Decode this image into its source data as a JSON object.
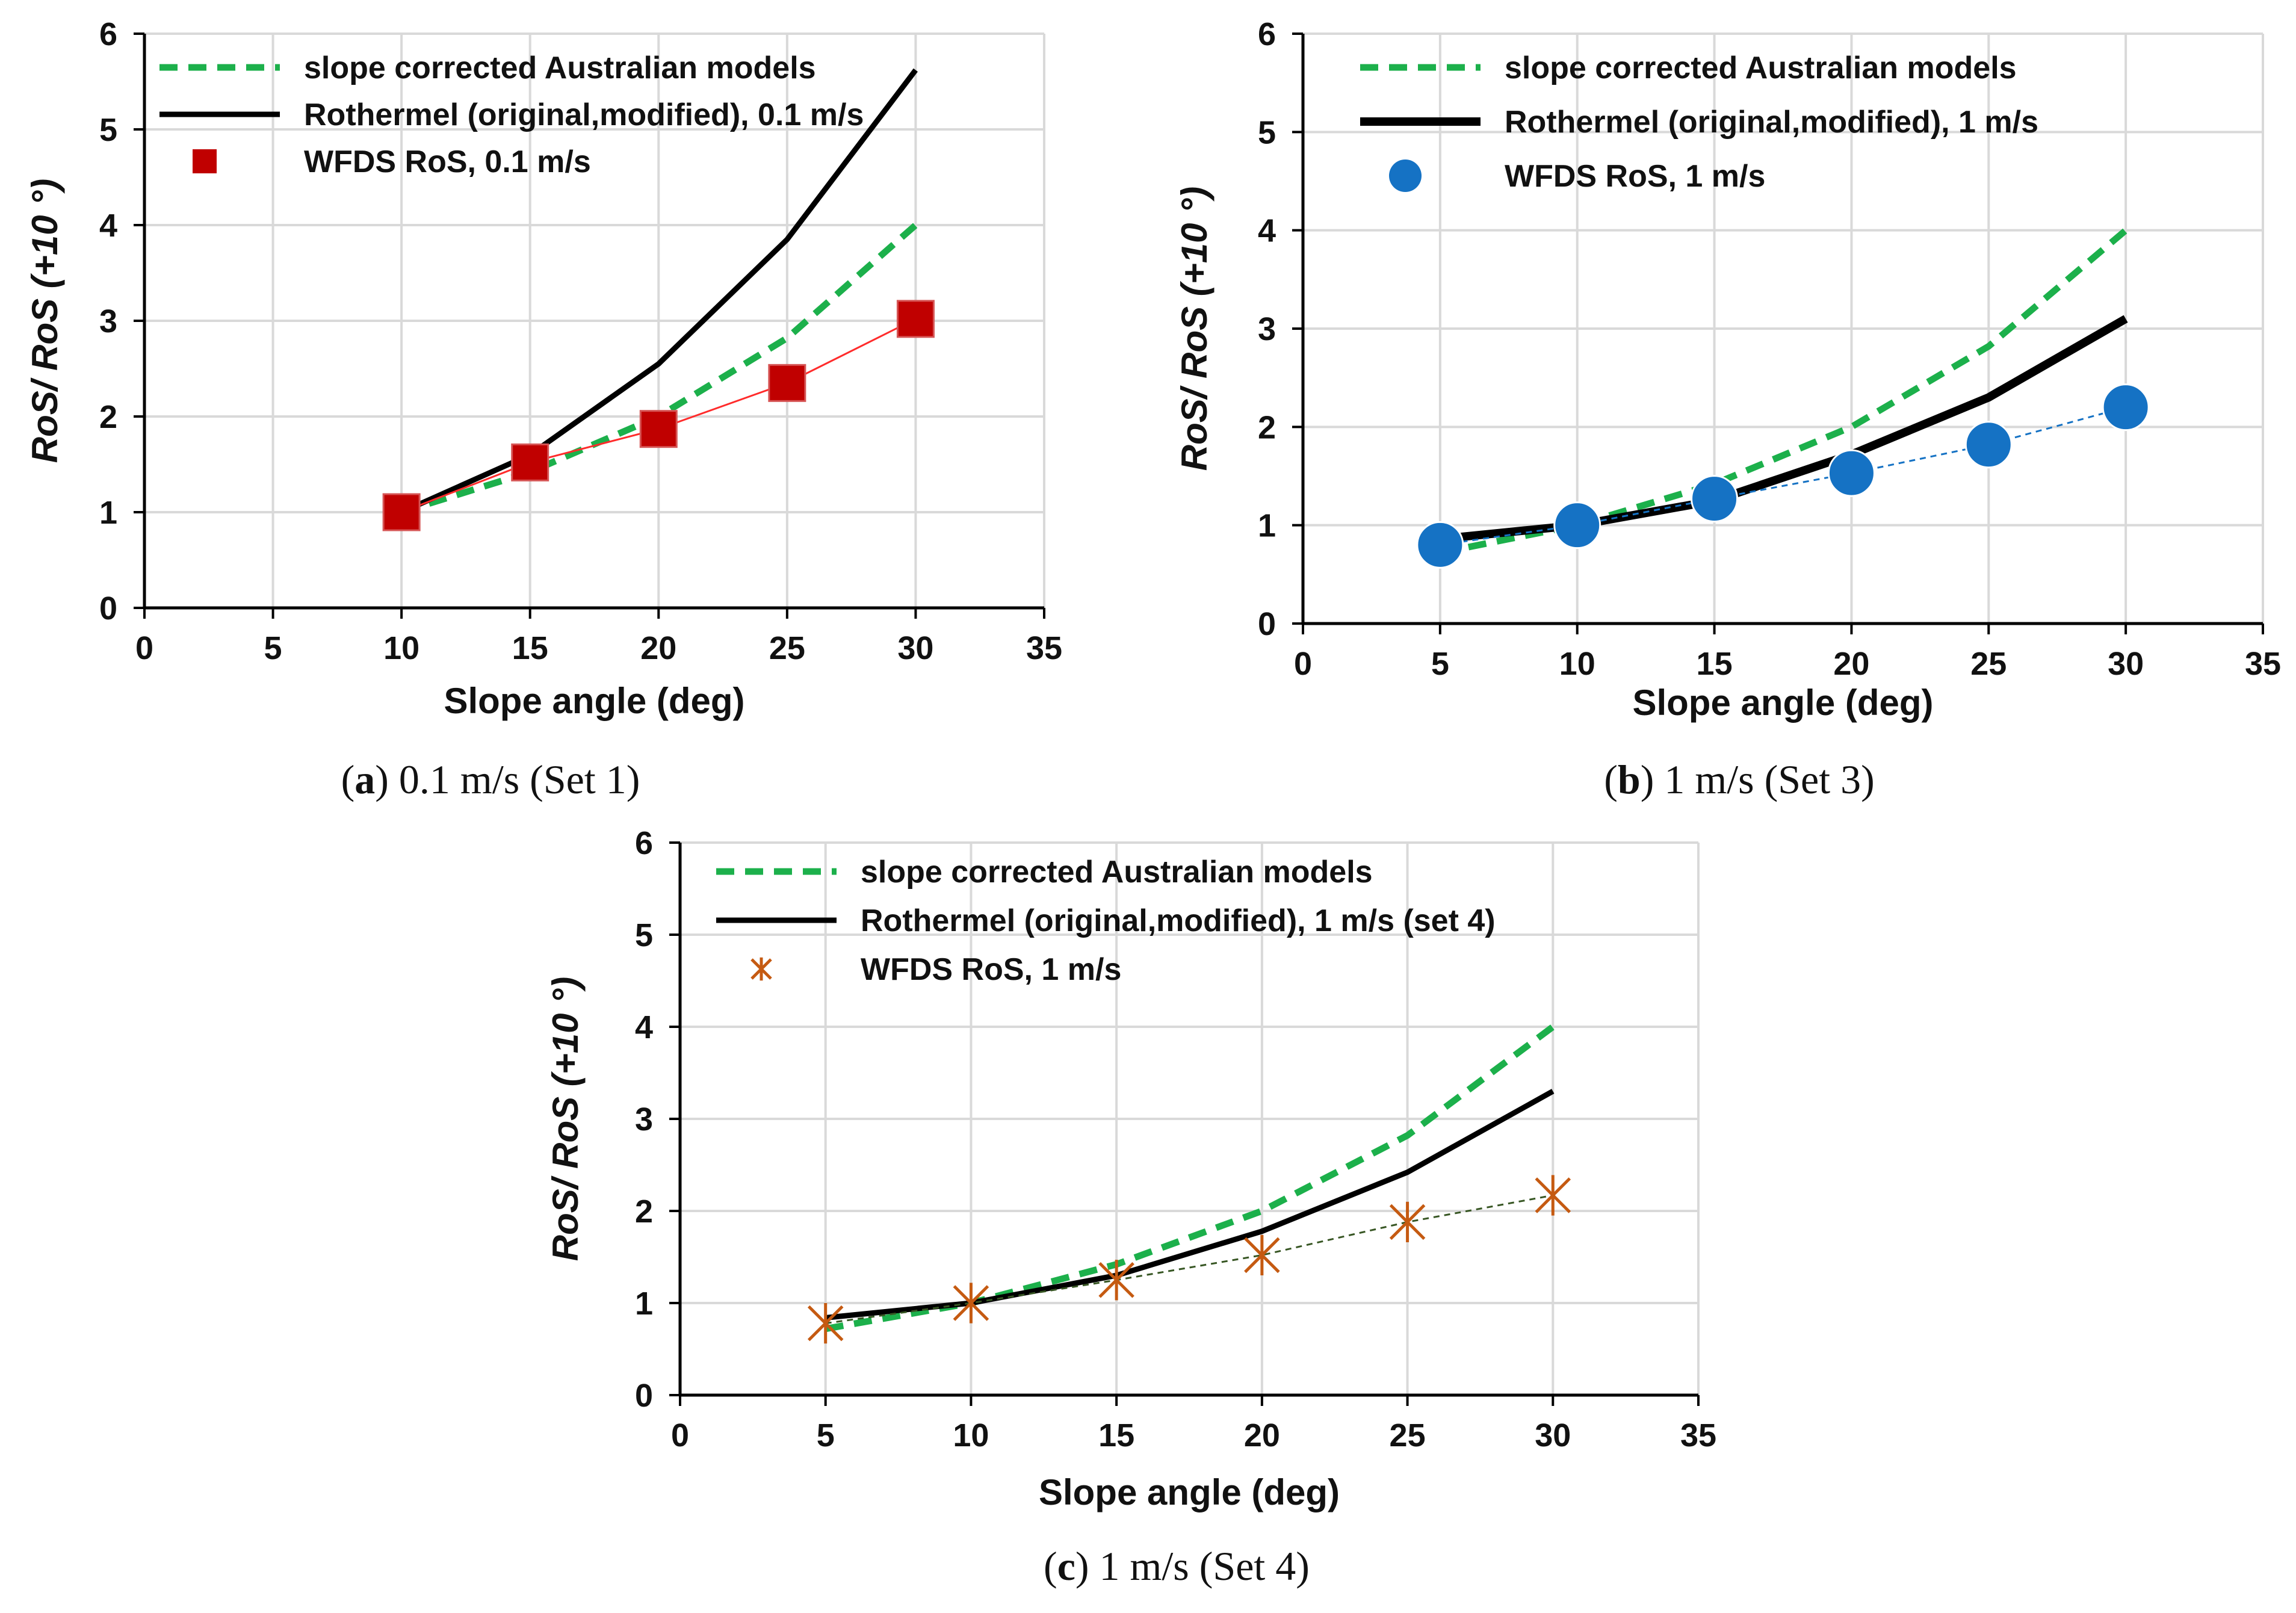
{
  "chart_data": [
    {
      "type": "line",
      "caption": {
        "letter": "a",
        "text": ") 0.1 m/s (Set 1)"
      },
      "xlabel": "Slope angle (deg)",
      "ylabel": "RoS/ RoS (+10 °)",
      "xlim": [
        0,
        35
      ],
      "ylim": [
        0,
        6
      ],
      "xticks": [
        0,
        5,
        10,
        15,
        20,
        25,
        30,
        35
      ],
      "yticks": [
        0,
        1,
        2,
        3,
        4,
        5,
        6
      ],
      "grid": true,
      "legend_position": "top-left",
      "series": [
        {
          "name": "slope corrected Australian models",
          "kind": "dashed",
          "color": "#1cb04b",
          "x": [
            10,
            15,
            20,
            25,
            30
          ],
          "y": [
            1.0,
            1.42,
            2.0,
            2.82,
            4.0
          ]
        },
        {
          "name": "Rothermel (original,modified), 0.1 m/s",
          "kind": "solid",
          "color": "#000000",
          "x": [
            10,
            15,
            20,
            25,
            30
          ],
          "y": [
            1.0,
            1.6,
            2.55,
            3.85,
            5.62
          ]
        },
        {
          "name": "WFDS RoS, 0.1 m/s",
          "kind": "square",
          "color": "#c00000",
          "connector_color": "#ff2b2b",
          "x": [
            10,
            15,
            20,
            25,
            30
          ],
          "y": [
            1.0,
            1.52,
            1.87,
            2.35,
            3.02
          ]
        }
      ]
    },
    {
      "type": "line",
      "caption": {
        "letter": "b",
        "text": ") 1 m/s (Set 3)"
      },
      "xlabel": "Slope angle (deg)",
      "ylabel": "RoS/ RoS (+10 °)",
      "xlim": [
        0,
        35
      ],
      "ylim": [
        0,
        6
      ],
      "xticks": [
        0,
        5,
        10,
        15,
        20,
        25,
        30,
        35
      ],
      "yticks": [
        0,
        1,
        2,
        3,
        4,
        5,
        6
      ],
      "grid": true,
      "legend_position": "top-left",
      "series": [
        {
          "name": "slope corrected Australian models",
          "kind": "dashed",
          "color": "#1cb04b",
          "x": [
            5,
            10,
            15,
            20,
            25,
            30
          ],
          "y": [
            0.72,
            1.0,
            1.42,
            2.0,
            2.82,
            4.0
          ]
        },
        {
          "name": "Rothermel (original,modified), 1 m/s",
          "kind": "solid-thick",
          "color": "#000000",
          "x": [
            5,
            10,
            15,
            20,
            25,
            30
          ],
          "y": [
            0.86,
            1.0,
            1.25,
            1.72,
            2.3,
            3.1
          ]
        },
        {
          "name": "WFDS RoS, 1 m/s",
          "kind": "circle",
          "color": "#1572c4",
          "connector_color": "#1572c4",
          "x": [
            5,
            10,
            15,
            20,
            25,
            30
          ],
          "y": [
            0.8,
            1.0,
            1.27,
            1.53,
            1.82,
            2.2
          ]
        }
      ]
    },
    {
      "type": "line",
      "caption": {
        "letter": "c",
        "text": ") 1 m/s (Set 4)"
      },
      "xlabel": "Slope angle (deg)",
      "ylabel": "RoS/ RoS (+10 °)",
      "xlim": [
        0,
        35
      ],
      "ylim": [
        0,
        6
      ],
      "xticks": [
        0,
        5,
        10,
        15,
        20,
        25,
        30,
        35
      ],
      "yticks": [
        0,
        1,
        2,
        3,
        4,
        5,
        6
      ],
      "grid": true,
      "legend_position": "top-left",
      "series": [
        {
          "name": "slope corrected Australian models",
          "kind": "dashed",
          "color": "#1cb04b",
          "x": [
            5,
            10,
            15,
            20,
            25,
            30
          ],
          "y": [
            0.72,
            1.0,
            1.42,
            2.0,
            2.82,
            4.0
          ]
        },
        {
          "name": "Rothermel (original,modified), 1 m/s (set 4)",
          "kind": "solid",
          "color": "#000000",
          "x": [
            5,
            10,
            15,
            20,
            25,
            30
          ],
          "y": [
            0.84,
            1.0,
            1.3,
            1.78,
            2.42,
            3.3
          ]
        },
        {
          "name": "WFDS RoS, 1 m/s",
          "kind": "star",
          "color": "#c55a11",
          "connector_color": "#375623",
          "x": [
            5,
            10,
            15,
            20,
            25,
            30
          ],
          "y": [
            0.78,
            1.0,
            1.25,
            1.52,
            1.88,
            2.17
          ]
        }
      ]
    }
  ]
}
